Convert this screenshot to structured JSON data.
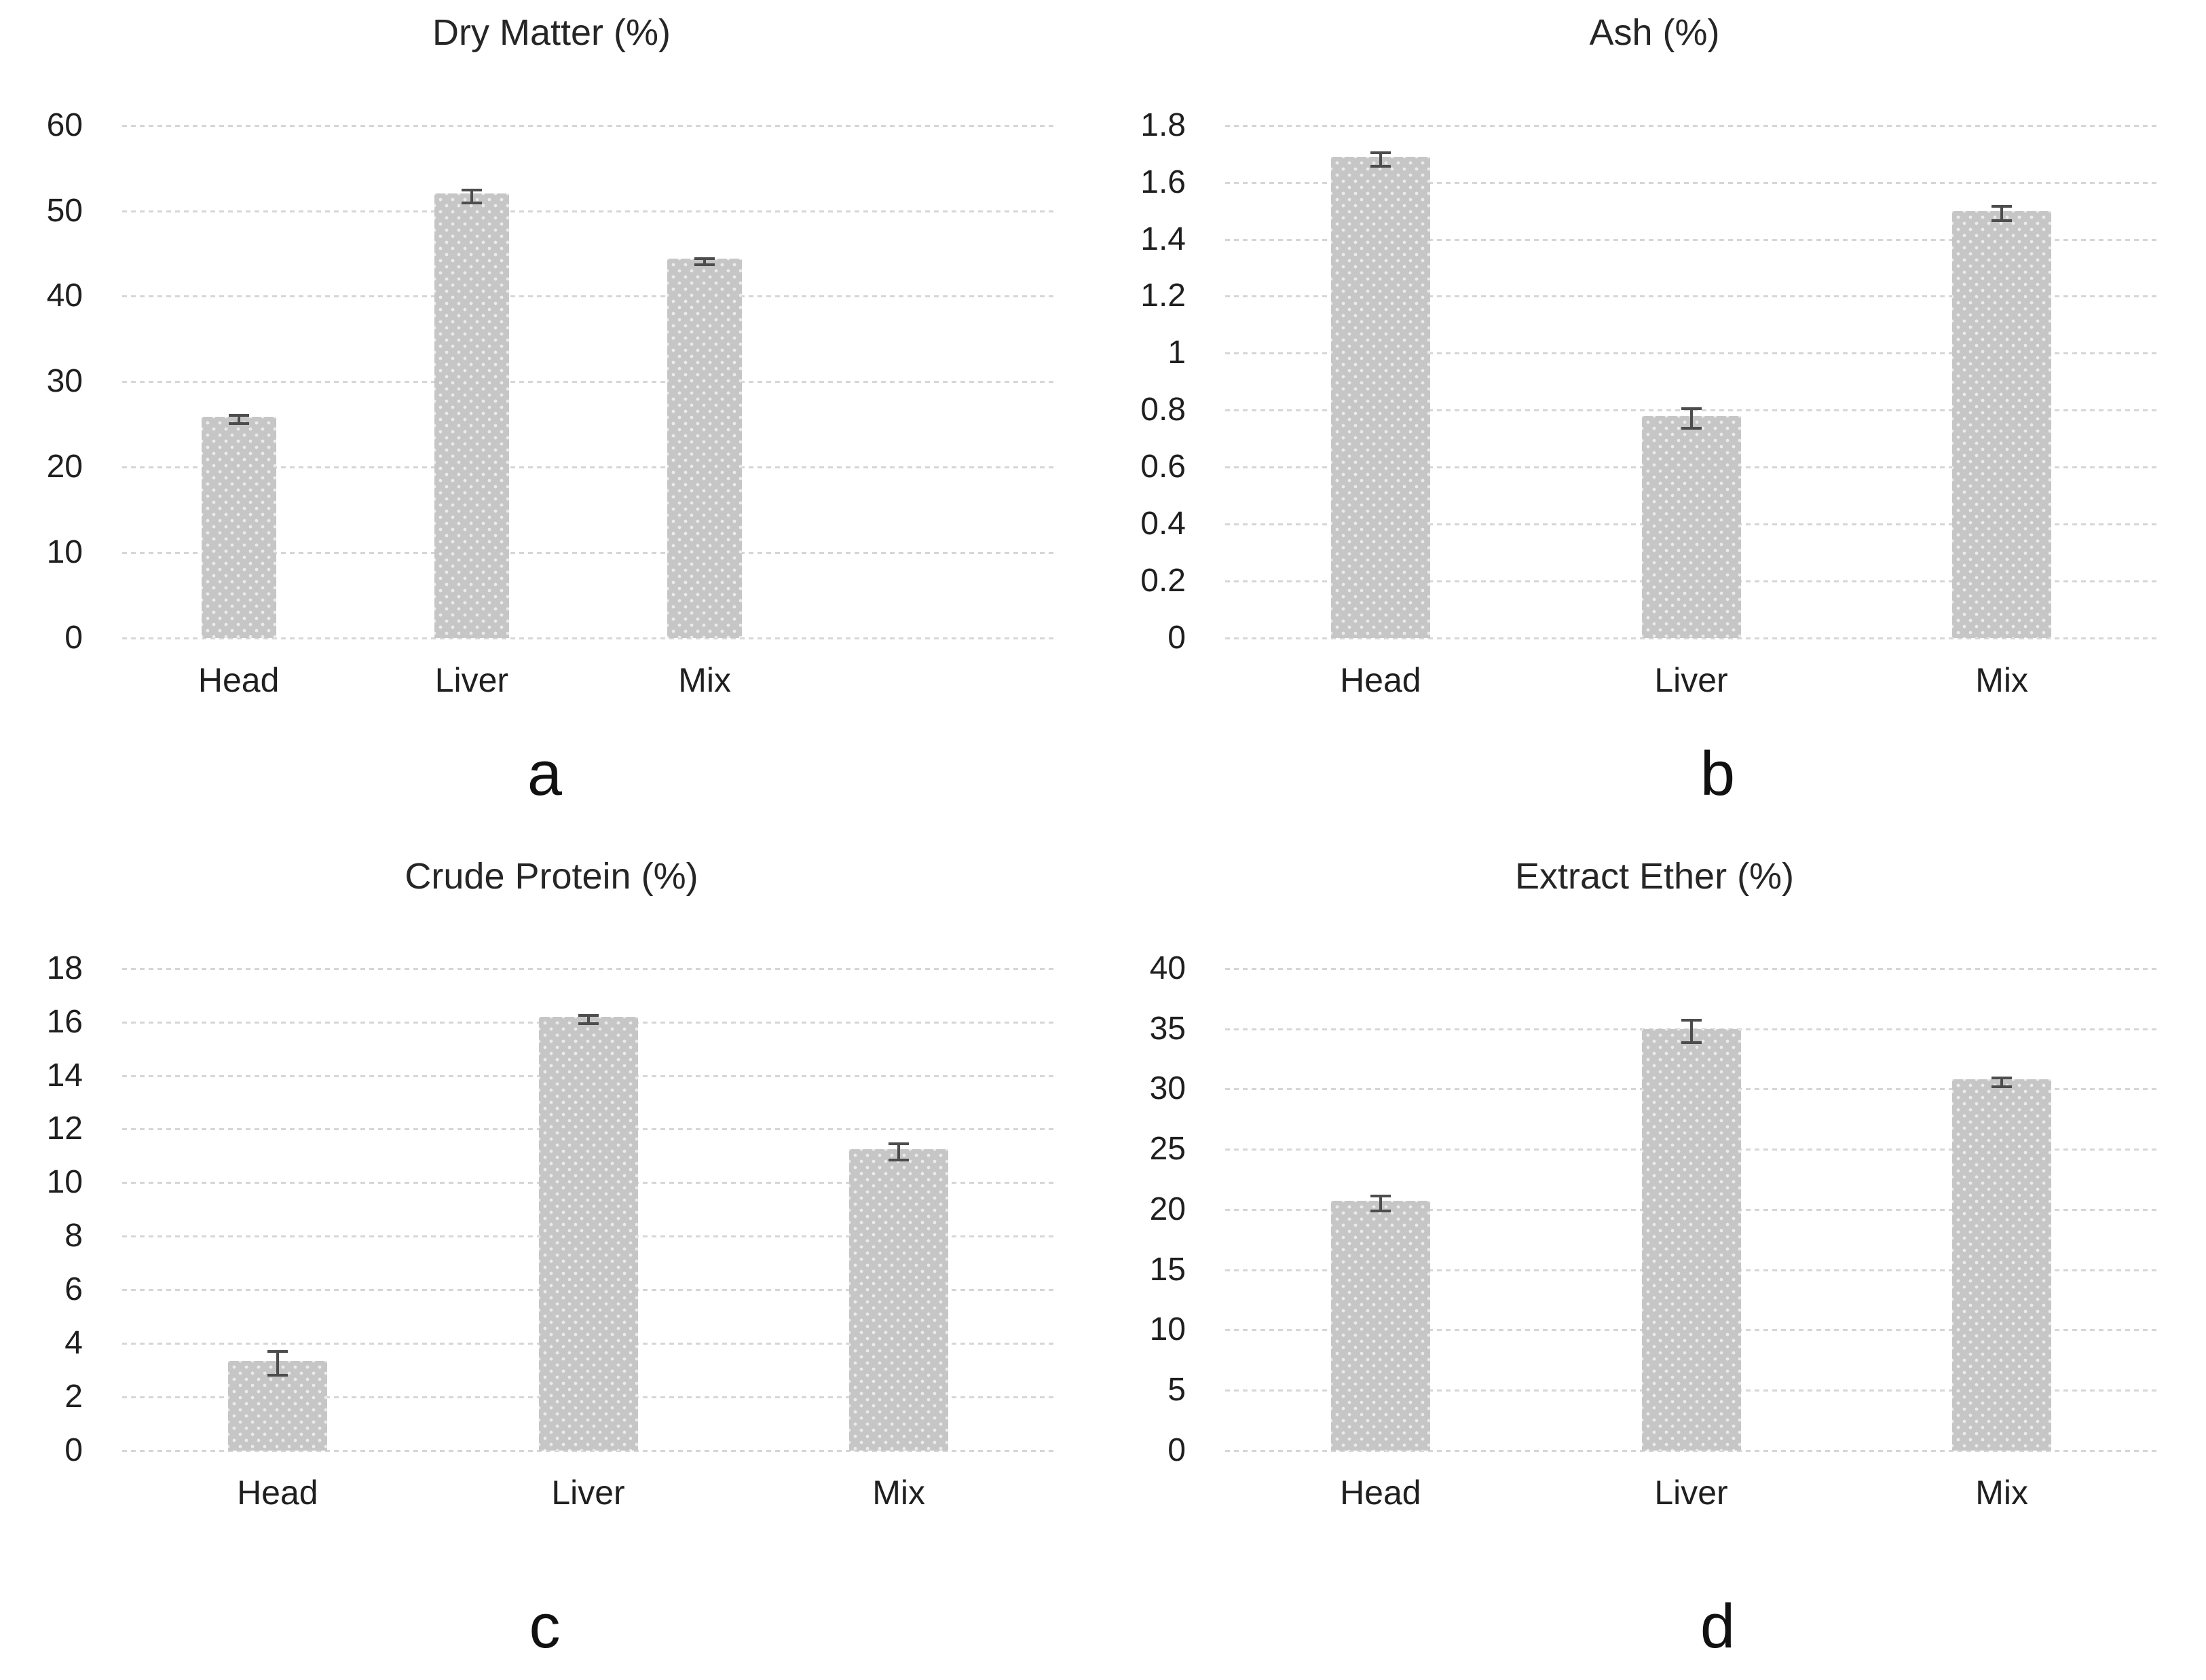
{
  "colors": {
    "background": "#ffffff",
    "bar_fill": "#c6c6c6",
    "bar_dot": "#e8e8e8",
    "gridline": "#d6d6d6",
    "error_bar": "#4d4d4d",
    "text": "#1f1f1f",
    "title_text": "#262626"
  },
  "chart_data": [
    {
      "type": "bar",
      "panel_label": "a",
      "title": "Dry Matter (%)",
      "categories": [
        "Head",
        "Liver",
        "Mix"
      ],
      "values": [
        25.9,
        52.0,
        44.4
      ],
      "errors": [
        0.3,
        0.6,
        0.2
      ],
      "ylim": [
        0,
        60
      ],
      "ytick_step": 10,
      "ytick_labels": [
        "0",
        "10",
        "20",
        "30",
        "40",
        "50",
        "60"
      ],
      "slots": 4,
      "grid": true,
      "legend": "none"
    },
    {
      "type": "bar",
      "panel_label": "b",
      "title": "Ash (%)",
      "categories": [
        "Head",
        "Liver",
        "Mix"
      ],
      "values": [
        1.69,
        0.78,
        1.5
      ],
      "errors": [
        0.02,
        0.03,
        0.02
      ],
      "ylim": [
        0,
        1.8
      ],
      "ytick_step": 0.2,
      "ytick_labels": [
        "0",
        "0.2",
        "0.4",
        "0.6",
        "0.8",
        "1",
        "1.2",
        "1.4",
        "1.6",
        "1.8"
      ],
      "slots": 3,
      "grid": true,
      "legend": "none"
    },
    {
      "type": "bar",
      "panel_label": "c",
      "title": "Crude Protein (%)",
      "categories": [
        "Head",
        "Liver",
        "Mix"
      ],
      "values": [
        3.35,
        16.2,
        11.25
      ],
      "errors": [
        0.4,
        0.1,
        0.25
      ],
      "ylim": [
        0,
        18
      ],
      "ytick_step": 2,
      "ytick_labels": [
        "0",
        "2",
        "4",
        "6",
        "8",
        "10",
        "12",
        "14",
        "16",
        "18"
      ],
      "slots": 3,
      "grid": true,
      "legend": "none"
    },
    {
      "type": "bar",
      "panel_label": "d",
      "title": "Extract Ether (%)",
      "categories": [
        "Head",
        "Liver",
        "Mix"
      ],
      "values": [
        20.7,
        35.0,
        30.8
      ],
      "errors": [
        0.5,
        0.8,
        0.25
      ],
      "ylim": [
        0,
        40
      ],
      "ytick_step": 5,
      "ytick_labels": [
        "0",
        "5",
        "10",
        "15",
        "20",
        "25",
        "30",
        "35",
        "40"
      ],
      "slots": 3,
      "grid": true,
      "legend": "none"
    }
  ]
}
